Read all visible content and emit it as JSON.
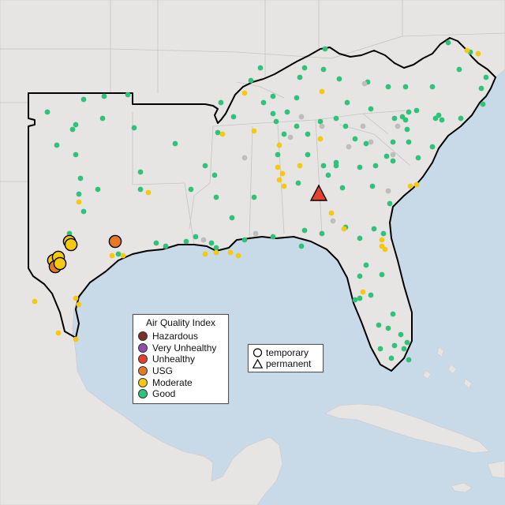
{
  "legend": {
    "title": "Air Quality Index",
    "categories": [
      {
        "label": "Hazardous",
        "color": "#7e2f2a"
      },
      {
        "label": "Very Unhealthy",
        "color": "#8f4fa8"
      },
      {
        "label": "Unhealthy",
        "color": "#e6402f"
      },
      {
        "label": "USG",
        "color": "#e6782a"
      },
      {
        "label": "Moderate",
        "color": "#f5c90f"
      },
      {
        "label": "Good",
        "color": "#2ec27a"
      }
    ]
  },
  "monitor_types": {
    "temporary": {
      "label": "temporary",
      "shape": "circle-icon"
    },
    "permanent": {
      "label": "permanent",
      "shape": "triangle-icon"
    }
  },
  "colors": {
    "water": "#c8d9e8",
    "land": "#e7e5e3",
    "no_data": "#bdbdbd",
    "region_outline": "#000000"
  }
}
